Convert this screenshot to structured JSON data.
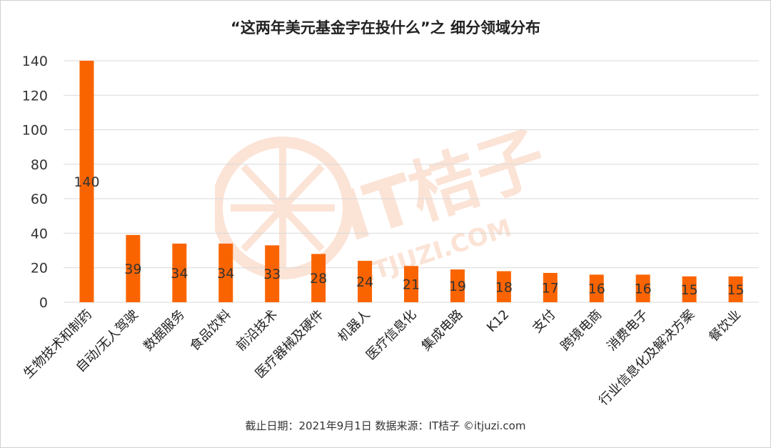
{
  "title": "“这两年美元基金字在投什么”之 细分领域分布",
  "footer": "截止日期：2021年9月1日   数据来源：IT桔子 ©itjuzi.com",
  "watermark": {
    "brand": "IT桔子",
    "site": "ITJUZI.COM"
  },
  "colors": {
    "bar": "#fa6400",
    "grid": "#d9d9d9",
    "watermark": "#fbe3d6"
  },
  "chart_data": {
    "type": "bar",
    "title": "“这两年美元基金字在投什么”之 细分领域分布",
    "xlabel": "",
    "ylabel": "",
    "ylim": [
      0,
      140
    ],
    "yticks": [
      0,
      20,
      40,
      60,
      80,
      100,
      120,
      140
    ],
    "grid": true,
    "categories": [
      "生物技术和制药",
      "自动/无人驾驶",
      "数据服务",
      "食品饮料",
      "前沿技术",
      "医疗器械及硬件",
      "机器人",
      "医疗信息化",
      "集成电路",
      "K12",
      "支付",
      "跨境电商",
      "消费电子",
      "行业信息化及解决方案",
      "餐饮业"
    ],
    "values": [
      140,
      39,
      34,
      34,
      33,
      28,
      24,
      21,
      19,
      18,
      17,
      16,
      16,
      15,
      15
    ]
  }
}
